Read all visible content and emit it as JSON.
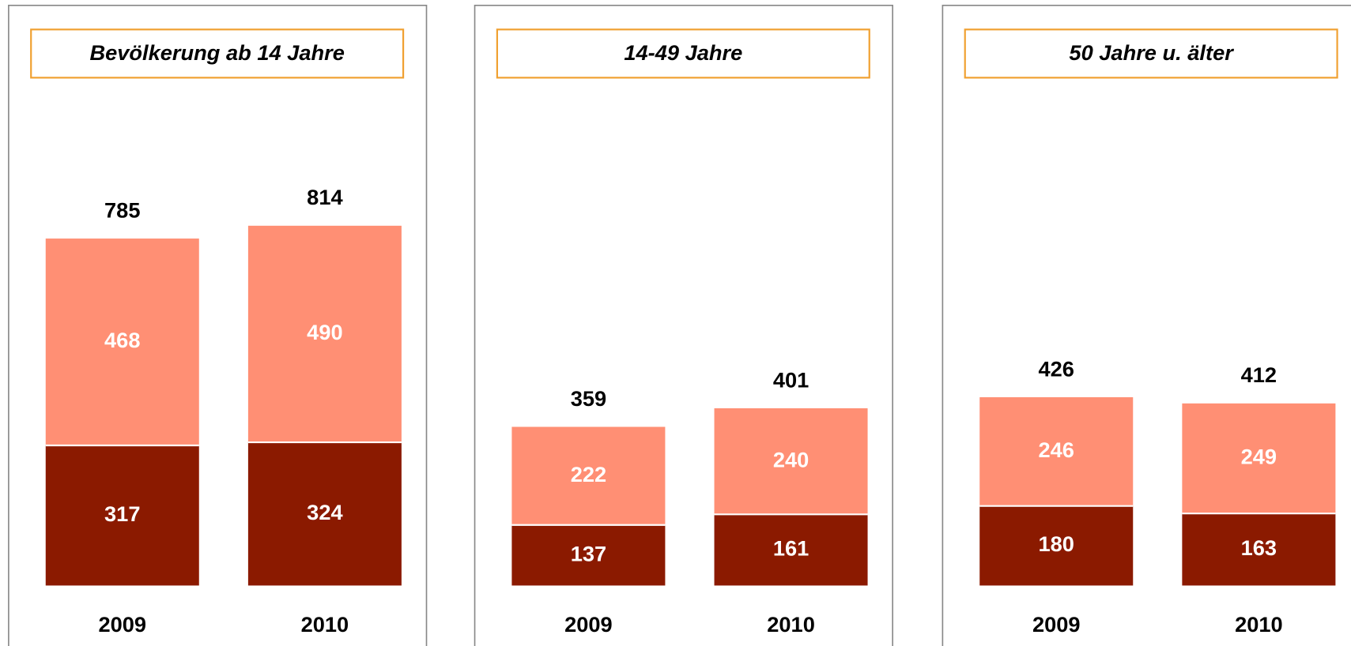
{
  "chart_data": [
    {
      "type": "stacked-bar",
      "title": "Bevölkerung ab 14 Jahre",
      "categories": [
        "2009",
        "2010"
      ],
      "series": [
        {
          "color": "#8b1a00",
          "values": [
            317,
            324
          ]
        },
        {
          "color": "#ff8f74",
          "values": [
            468,
            490
          ]
        }
      ],
      "totals": [
        785,
        814
      ]
    },
    {
      "type": "stacked-bar",
      "title": "14-49 Jahre",
      "categories": [
        "2009",
        "2010"
      ],
      "series": [
        {
          "color": "#8b1a00",
          "values": [
            137,
            161
          ]
        },
        {
          "color": "#ff8f74",
          "values": [
            222,
            240
          ]
        }
      ],
      "totals": [
        359,
        401
      ]
    },
    {
      "type": "stacked-bar",
      "title": "50 Jahre u. älter",
      "categories": [
        "2009",
        "2010"
      ],
      "series": [
        {
          "color": "#8b1a00",
          "values": [
            180,
            163
          ]
        },
        {
          "color": "#ff8f74",
          "values": [
            246,
            249
          ]
        }
      ],
      "totals": [
        426,
        412
      ]
    }
  ]
}
